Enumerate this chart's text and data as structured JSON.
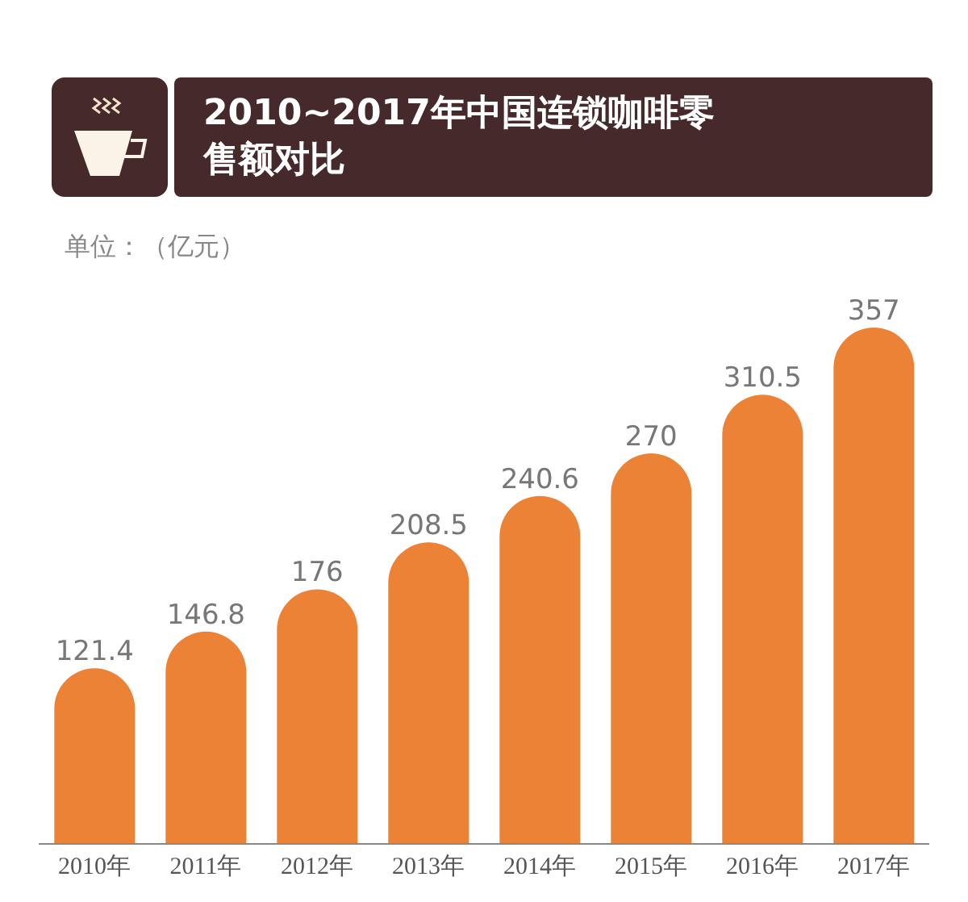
{
  "chart_data": {
    "type": "bar",
    "title": "2010~2017年中国连锁咖啡零售额对比",
    "subtitle": "单位：（亿元）",
    "categories": [
      "2010年",
      "2011年",
      "2012年",
      "2013年",
      "2014年",
      "2015年",
      "2016年",
      "2017年"
    ],
    "values": [
      121.4,
      146.8,
      176,
      208.5,
      240.6,
      270,
      310.5,
      357
    ],
    "color": "#ec8235",
    "data_labels": true
  }
}
